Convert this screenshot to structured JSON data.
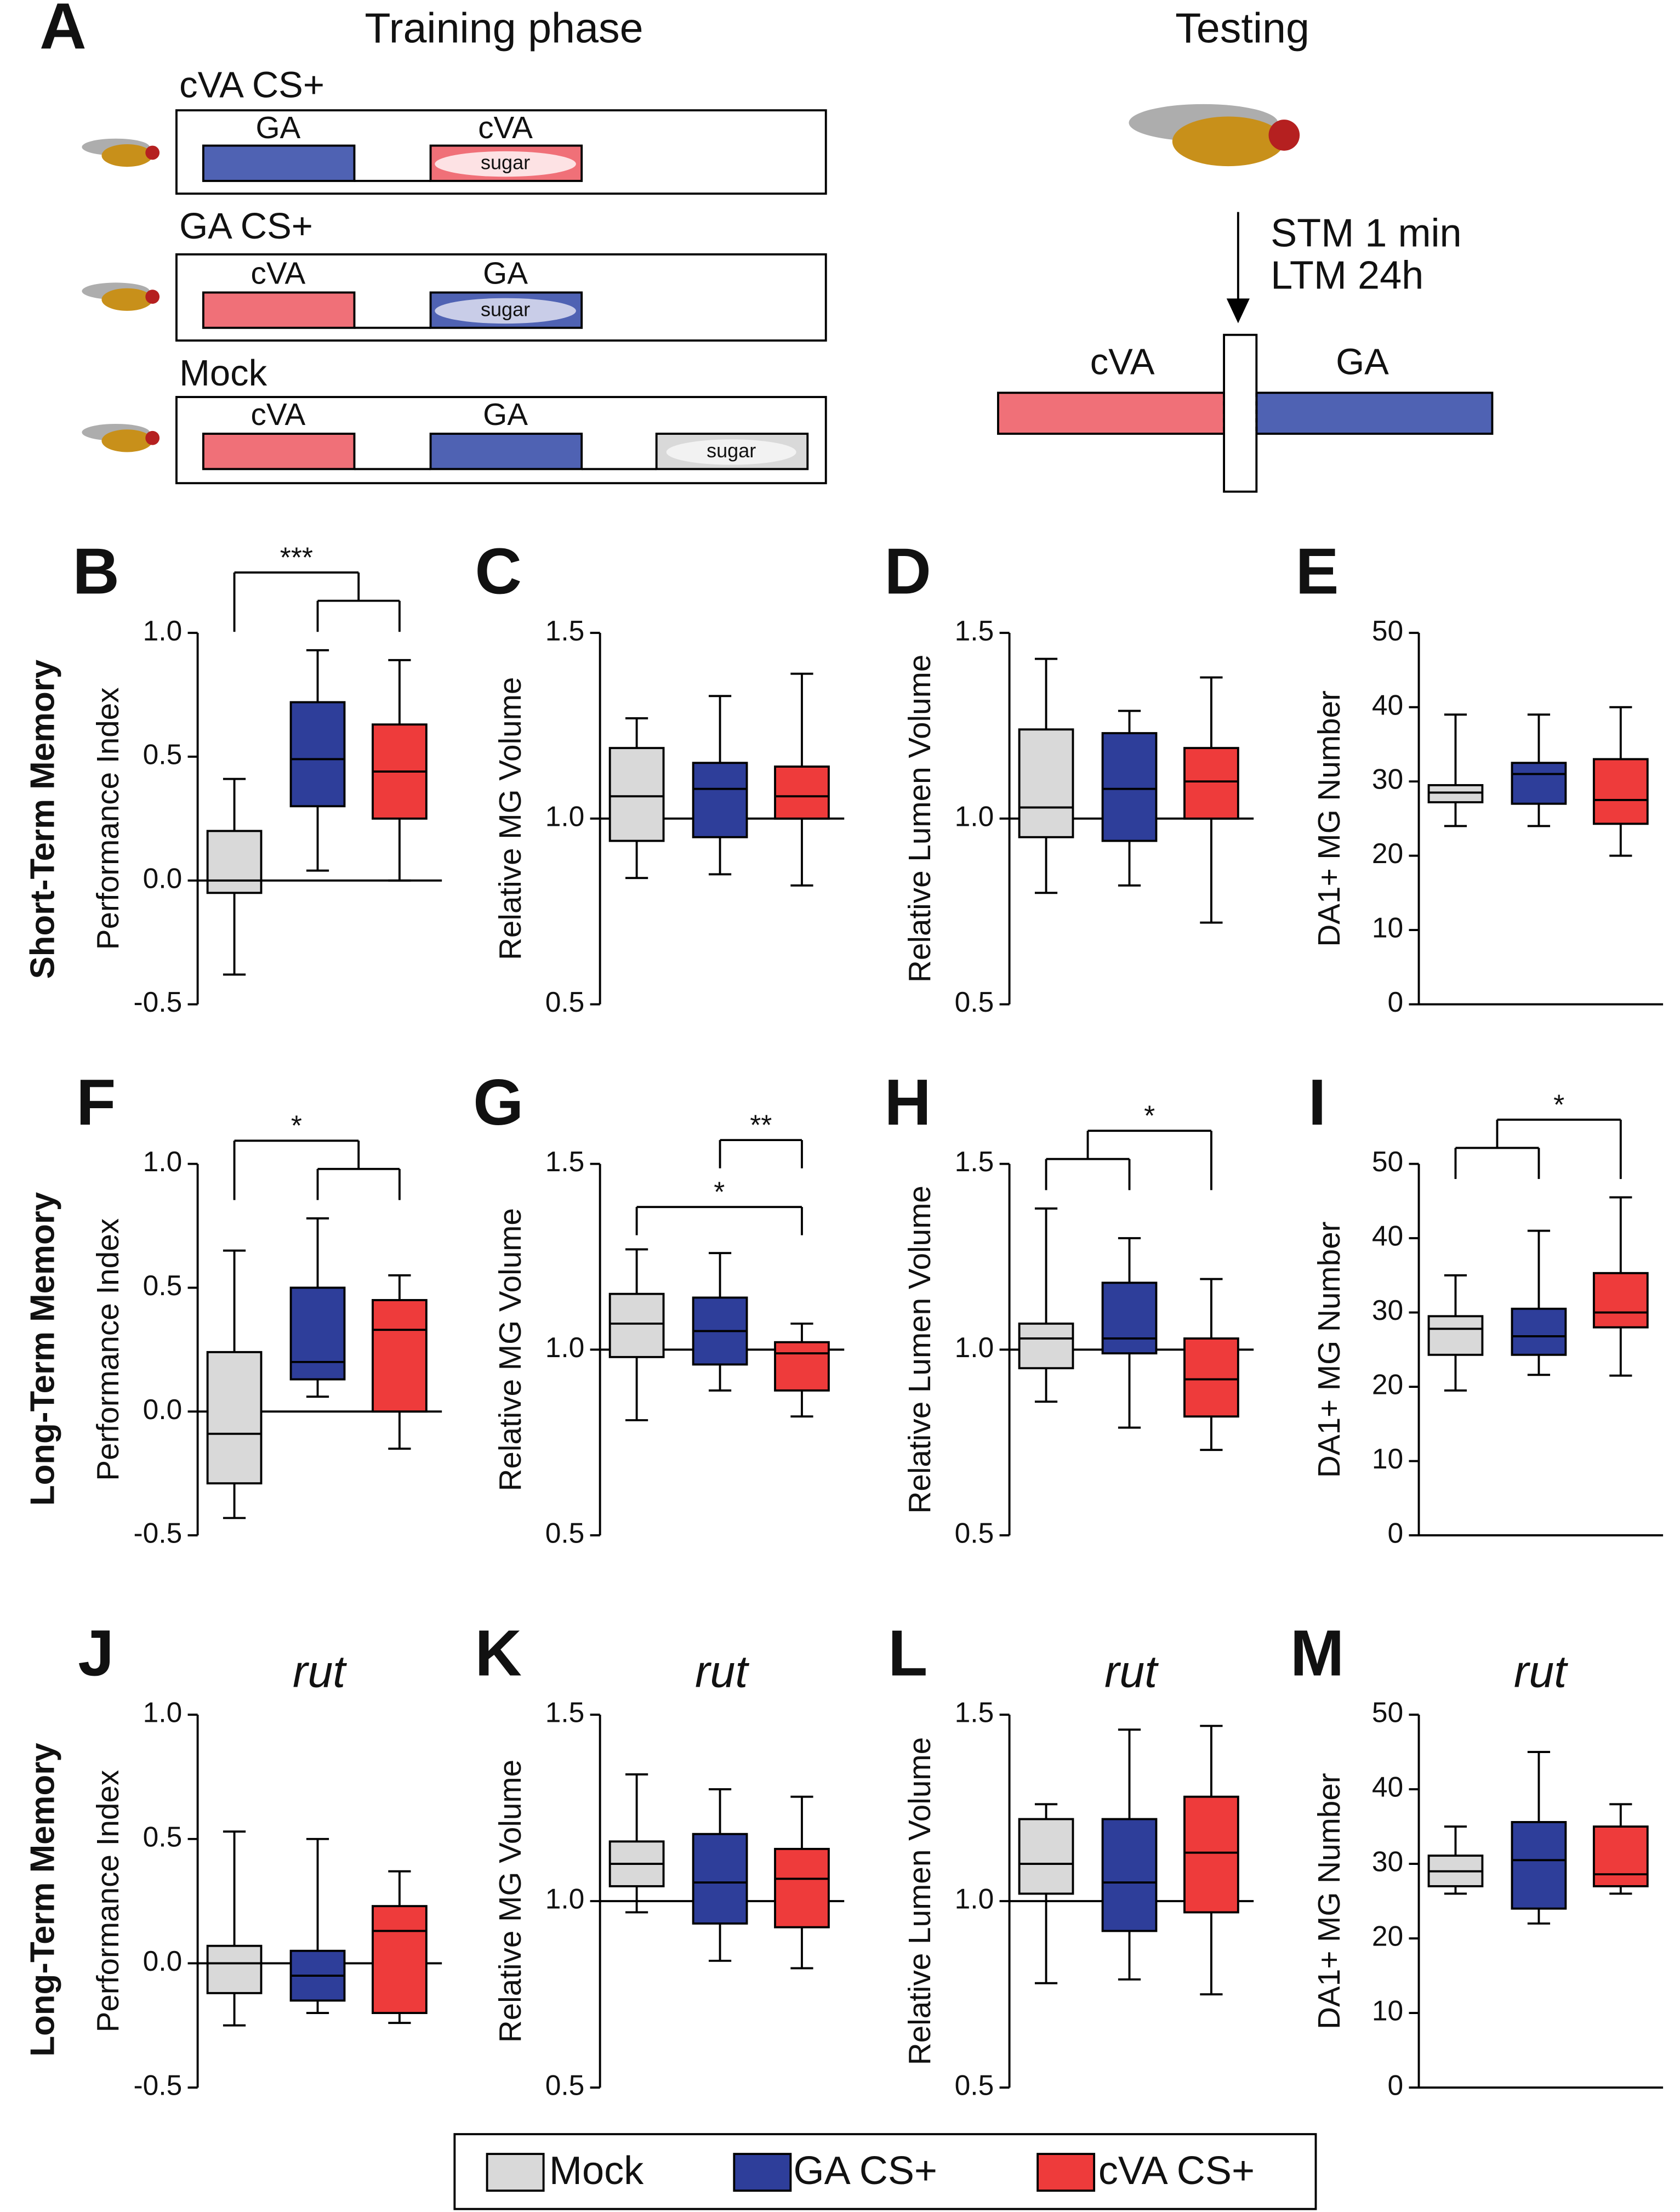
{
  "panel_a": {
    "label": "A",
    "training_title": "Training phase",
    "testing_title": "Testing",
    "protocols": [
      {
        "name": "cVA CS+",
        "first": "GA",
        "second": "cVA",
        "reward": "sugar"
      },
      {
        "name": "GA CS+",
        "first": "cVA",
        "second": "GA",
        "reward": "sugar"
      },
      {
        "name": "Mock",
        "first": "cVA",
        "second": "GA",
        "reward": "sugar"
      }
    ],
    "testing": {
      "times": [
        "STM 1 min",
        "LTM 24h"
      ],
      "left_arm": "cVA",
      "right_arm": "GA"
    }
  },
  "row_labels": [
    "Short-Term Memory",
    "Long-Term Memory",
    "Long-Term Memory"
  ],
  "chart_data": [
    {
      "type": "box",
      "panel": "B",
      "ylabel": "Performance Index",
      "ylim": [
        -0.5,
        1.0
      ],
      "yticks": [
        -0.5,
        {
          "value": 0,
          "label": "0.0"
        },
        0.5,
        {
          "value": 1,
          "label": "1.0"
        }
      ],
      "refline": 0,
      "series": [
        {
          "name": "Mock",
          "color": "#d9d9d9",
          "min": -0.38,
          "q1": -0.05,
          "median": 0.0,
          "q3": 0.2,
          "max": 0.41
        },
        {
          "name": "GA CS+",
          "color": "#2e3e9a",
          "min": 0.04,
          "q1": 0.3,
          "median": 0.49,
          "q3": 0.72,
          "max": 0.93
        },
        {
          "name": "cVA CS+",
          "color": "#ee3b3b",
          "min": 0.0,
          "q1": 0.25,
          "median": 0.44,
          "q3": 0.63,
          "max": 0.89
        }
      ],
      "annotations": [
        {
          "text": "***",
          "left": [
            0
          ],
          "right": [
            1,
            2
          ]
        }
      ]
    },
    {
      "type": "box",
      "panel": "C",
      "ylabel": "Relative MG Volume",
      "ylim": [
        0.5,
        1.5
      ],
      "yticks": [
        0.5,
        {
          "value": 1,
          "label": "1.0"
        },
        1.5
      ],
      "refline": 1,
      "series": [
        {
          "name": "Mock",
          "color": "#d9d9d9",
          "min": 0.84,
          "q1": 0.94,
          "median": 1.06,
          "q3": 1.19,
          "max": 1.27
        },
        {
          "name": "GA CS+",
          "color": "#2e3e9a",
          "min": 0.85,
          "q1": 0.95,
          "median": 1.08,
          "q3": 1.15,
          "max": 1.33
        },
        {
          "name": "cVA CS+",
          "color": "#ee3b3b",
          "min": 0.82,
          "q1": 1.0,
          "median": 1.06,
          "q3": 1.14,
          "max": 1.39
        }
      ],
      "annotations": []
    },
    {
      "type": "box",
      "panel": "D",
      "ylabel": "Relative Lumen Volume",
      "ylim": [
        0.5,
        1.5
      ],
      "yticks": [
        0.5,
        {
          "value": 1,
          "label": "1.0"
        },
        1.5
      ],
      "refline": 1,
      "series": [
        {
          "name": "Mock",
          "color": "#d9d9d9",
          "min": 0.8,
          "q1": 0.95,
          "median": 1.03,
          "q3": 1.24,
          "max": 1.43
        },
        {
          "name": "GA CS+",
          "color": "#2e3e9a",
          "min": 0.82,
          "q1": 0.94,
          "median": 1.08,
          "q3": 1.23,
          "max": 1.29
        },
        {
          "name": "cVA CS+",
          "color": "#ee3b3b",
          "min": 0.72,
          "q1": 1.0,
          "median": 1.1,
          "q3": 1.19,
          "max": 1.38
        }
      ],
      "annotations": []
    },
    {
      "type": "box",
      "panel": "E",
      "ylabel": "DA1+ MG Number",
      "ylim": [
        0,
        50
      ],
      "yticks": [
        0,
        10,
        20,
        30,
        40,
        50
      ],
      "refline": 0,
      "series": [
        {
          "name": "Mock",
          "color": "#d9d9d9",
          "min": 24,
          "q1": 27.2,
          "median": 28.5,
          "q3": 29.5,
          "max": 39
        },
        {
          "name": "GA CS+",
          "color": "#2e3e9a",
          "min": 24,
          "q1": 27,
          "median": 31,
          "q3": 32.5,
          "max": 39
        },
        {
          "name": "cVA CS+",
          "color": "#ee3b3b",
          "min": 20,
          "q1": 24.3,
          "median": 27.5,
          "q3": 33,
          "max": 40
        }
      ],
      "annotations": []
    },
    {
      "type": "box",
      "panel": "F",
      "ylabel": "Performance Index",
      "ylim": [
        -0.5,
        1.0
      ],
      "yticks": [
        -0.5,
        {
          "value": 0,
          "label": "0.0"
        },
        0.5,
        {
          "value": 1,
          "label": "1.0"
        }
      ],
      "refline": 0,
      "series": [
        {
          "name": "Mock",
          "color": "#d9d9d9",
          "min": -0.43,
          "q1": -0.29,
          "median": -0.09,
          "q3": 0.24,
          "max": 0.65
        },
        {
          "name": "GA CS+",
          "color": "#2e3e9a",
          "min": 0.06,
          "q1": 0.13,
          "median": 0.2,
          "q3": 0.5,
          "max": 0.78
        },
        {
          "name": "cVA CS+",
          "color": "#ee3b3b",
          "min": -0.15,
          "q1": 0.0,
          "median": 0.33,
          "q3": 0.45,
          "max": 0.55
        }
      ],
      "annotations": [
        {
          "text": "*",
          "left": [
            0
          ],
          "right": [
            1,
            2
          ]
        }
      ]
    },
    {
      "type": "box",
      "panel": "G",
      "ylabel": "Relative MG Volume",
      "ylim": [
        0.5,
        1.5
      ],
      "yticks": [
        0.5,
        {
          "value": 1,
          "label": "1.0"
        },
        1.5
      ],
      "refline": 1,
      "series": [
        {
          "name": "Mock",
          "color": "#d9d9d9",
          "min": 0.81,
          "q1": 0.98,
          "median": 1.07,
          "q3": 1.15,
          "max": 1.27
        },
        {
          "name": "GA CS+",
          "color": "#2e3e9a",
          "min": 0.89,
          "q1": 0.96,
          "median": 1.05,
          "q3": 1.14,
          "max": 1.26
        },
        {
          "name": "cVA CS+",
          "color": "#ee3b3b",
          "min": 0.82,
          "q1": 0.89,
          "median": 0.99,
          "q3": 1.02,
          "max": 1.07
        }
      ],
      "annotations": [
        {
          "text": "*",
          "left": [
            0
          ],
          "right": [
            2
          ]
        },
        {
          "text": "**",
          "left": [
            1
          ],
          "right": [
            2
          ]
        }
      ]
    },
    {
      "type": "box",
      "panel": "H",
      "ylabel": "Relative Lumen Volume",
      "ylim": [
        0.5,
        1.5
      ],
      "yticks": [
        0.5,
        {
          "value": 1,
          "label": "1.0"
        },
        1.5
      ],
      "refline": 1,
      "series": [
        {
          "name": "Mock",
          "color": "#d9d9d9",
          "min": 0.86,
          "q1": 0.95,
          "median": 1.03,
          "q3": 1.07,
          "max": 1.38
        },
        {
          "name": "GA CS+",
          "color": "#2e3e9a",
          "min": 0.79,
          "q1": 0.99,
          "median": 1.03,
          "q3": 1.18,
          "max": 1.3
        },
        {
          "name": "cVA CS+",
          "color": "#ee3b3b",
          "min": 0.73,
          "q1": 0.82,
          "median": 0.92,
          "q3": 1.03,
          "max": 1.19
        }
      ],
      "annotations": [
        {
          "text": "*",
          "left": [
            0,
            1
          ],
          "right": [
            2
          ]
        }
      ]
    },
    {
      "type": "box",
      "panel": "I",
      "ylabel": "DA1+ MG Number",
      "ylim": [
        0,
        50
      ],
      "yticks": [
        0,
        10,
        20,
        30,
        40,
        50
      ],
      "refline": 0,
      "series": [
        {
          "name": "Mock",
          "color": "#d9d9d9",
          "min": 19.5,
          "q1": 24.3,
          "median": 27.8,
          "q3": 29.5,
          "max": 35
        },
        {
          "name": "GA CS+",
          "color": "#2e3e9a",
          "min": 21.6,
          "q1": 24.3,
          "median": 26.8,
          "q3": 30.5,
          "max": 41
        },
        {
          "name": "cVA CS+",
          "color": "#ee3b3b",
          "min": 21.5,
          "q1": 28,
          "median": 30,
          "q3": 35.3,
          "max": 45.5
        }
      ],
      "annotations": [
        {
          "text": "*",
          "left": [
            0,
            1
          ],
          "right": [
            2
          ]
        }
      ]
    },
    {
      "type": "box",
      "panel": "J",
      "subtitle": "rut",
      "ylabel": "Performance Index",
      "ylim": [
        -0.5,
        1.0
      ],
      "yticks": [
        -0.5,
        {
          "value": 0,
          "label": "0.0"
        },
        0.5,
        {
          "value": 1,
          "label": "1.0"
        }
      ],
      "refline": 0,
      "series": [
        {
          "name": "Mock",
          "color": "#d9d9d9",
          "min": -0.25,
          "q1": -0.12,
          "median": 0.0,
          "q3": 0.07,
          "max": 0.53
        },
        {
          "name": "GA CS+",
          "color": "#2e3e9a",
          "min": -0.2,
          "q1": -0.15,
          "median": -0.05,
          "q3": 0.05,
          "max": 0.5
        },
        {
          "name": "cVA CS+",
          "color": "#ee3b3b",
          "min": -0.24,
          "q1": -0.2,
          "median": 0.13,
          "q3": 0.23,
          "max": 0.37
        }
      ],
      "annotations": []
    },
    {
      "type": "box",
      "panel": "K",
      "subtitle": "rut",
      "ylabel": "Relative MG Volume",
      "ylim": [
        0.5,
        1.5
      ],
      "yticks": [
        0.5,
        {
          "value": 1,
          "label": "1.0"
        },
        1.5
      ],
      "refline": 1,
      "series": [
        {
          "name": "Mock",
          "color": "#d9d9d9",
          "min": 0.97,
          "q1": 1.04,
          "median": 1.1,
          "q3": 1.16,
          "max": 1.34
        },
        {
          "name": "GA CS+",
          "color": "#2e3e9a",
          "min": 0.84,
          "q1": 0.94,
          "median": 1.05,
          "q3": 1.18,
          "max": 1.3
        },
        {
          "name": "cVA CS+",
          "color": "#ee3b3b",
          "min": 0.82,
          "q1": 0.93,
          "median": 1.06,
          "q3": 1.14,
          "max": 1.28
        }
      ],
      "annotations": []
    },
    {
      "type": "box",
      "panel": "L",
      "subtitle": "rut",
      "ylabel": "Relative Lumen Volume",
      "ylim": [
        0.5,
        1.5
      ],
      "yticks": [
        0.5,
        {
          "value": 1,
          "label": "1.0"
        },
        1.5
      ],
      "refline": 1,
      "series": [
        {
          "name": "Mock",
          "color": "#d9d9d9",
          "min": 0.78,
          "q1": 1.02,
          "median": 1.1,
          "q3": 1.22,
          "max": 1.26
        },
        {
          "name": "GA CS+",
          "color": "#2e3e9a",
          "min": 0.79,
          "q1": 0.92,
          "median": 1.05,
          "q3": 1.22,
          "max": 1.46
        },
        {
          "name": "cVA CS+",
          "color": "#ee3b3b",
          "min": 0.75,
          "q1": 0.97,
          "median": 1.13,
          "q3": 1.28,
          "max": 1.47
        }
      ],
      "annotations": []
    },
    {
      "type": "box",
      "panel": "M",
      "subtitle": "rut",
      "ylabel": "DA1+ MG Number",
      "ylim": [
        0,
        50
      ],
      "yticks": [
        0,
        10,
        20,
        30,
        40,
        50
      ],
      "refline": 0,
      "series": [
        {
          "name": "Mock",
          "color": "#d9d9d9",
          "min": 26,
          "q1": 27,
          "median": 29,
          "q3": 31.1,
          "max": 35
        },
        {
          "name": "GA CS+",
          "color": "#2e3e9a",
          "min": 22,
          "q1": 24,
          "median": 30.5,
          "q3": 35.6,
          "max": 45
        },
        {
          "name": "cVA CS+",
          "color": "#ee3b3b",
          "min": 26,
          "q1": 27,
          "median": 28.6,
          "q3": 35,
          "max": 38
        }
      ],
      "annotations": []
    }
  ]
}
